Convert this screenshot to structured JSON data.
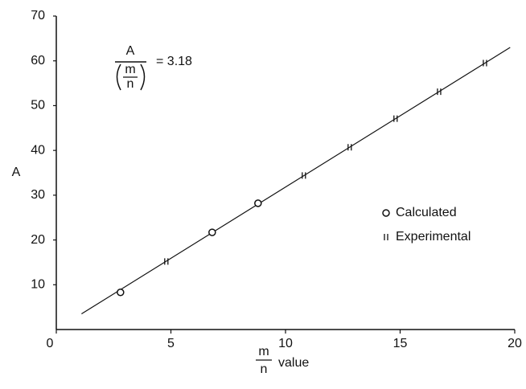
{
  "chart_data": {
    "type": "scatter",
    "annotation": {
      "numerator": "A",
      "denominator": [
        "m",
        "n"
      ],
      "text": "= 3.18"
    },
    "y_label": "A",
    "x_label": {
      "numerator": "m",
      "denominator": "n",
      "text": "value"
    },
    "xlim": [
      0,
      20
    ],
    "xticks": [
      0,
      5,
      10,
      15,
      20
    ],
    "ylim": [
      0,
      70
    ],
    "yticks": [
      10,
      20,
      30,
      40,
      50,
      60,
      70
    ],
    "grid": false,
    "legend": "right",
    "fit_line": {
      "color": "#111111",
      "x": [
        1.1,
        19.8
      ],
      "values": [
        3.5,
        63.0
      ]
    },
    "series": [
      {
        "name": "Calculated",
        "marker": "circle",
        "color": "#111111",
        "x": [
          2.8,
          6.8,
          8.8
        ],
        "values": [
          8.3,
          21.7,
          28.2
        ]
      },
      {
        "name": "Experimental",
        "marker": "tick",
        "color": "#111111",
        "x": [
          4.8,
          10.8,
          12.8,
          14.8,
          16.7,
          18.7
        ],
        "values": [
          15.2,
          34.4,
          40.7,
          47.1,
          53.1,
          59.5
        ]
      }
    ]
  }
}
